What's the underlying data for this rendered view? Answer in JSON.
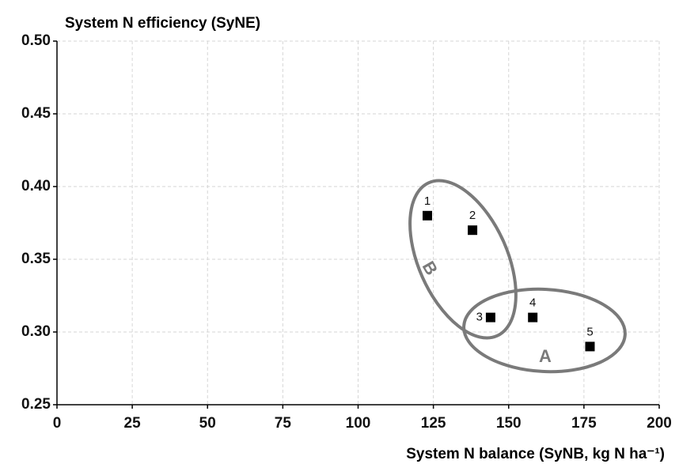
{
  "chart_data": {
    "type": "scatter",
    "title": "System N efficiency (SyNE)",
    "x_label": "System N balance (SyNB, kg N ha⁻¹)",
    "x": [
      123,
      138,
      144,
      158,
      177
    ],
    "values": [
      0.38,
      0.37,
      0.31,
      0.31,
      0.29
    ],
    "labels": [
      "1",
      "2",
      "3",
      "4",
      "5"
    ],
    "color": "#000000",
    "xlim": [
      0,
      200
    ],
    "xticks": [
      0,
      25,
      50,
      75,
      100,
      125,
      150,
      175,
      200
    ],
    "ylim": [
      0.25,
      0.5
    ],
    "yticks": [
      0.25,
      {
        "value": 0.3,
        "label": "0.30"
      },
      0.35,
      {
        "value": 0.4,
        "label": "0.40"
      },
      0.45,
      {
        "value": 0.5,
        "label": "0.50"
      }
    ],
    "grid": true,
    "annotations": [
      "A",
      "B"
    ]
  }
}
